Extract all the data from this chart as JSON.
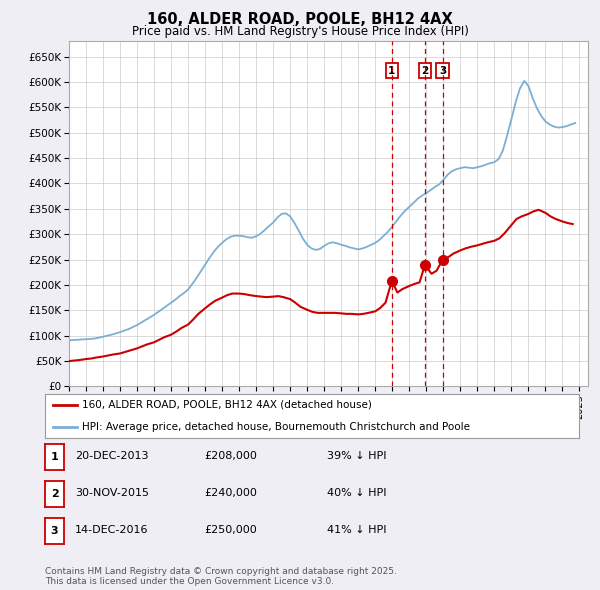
{
  "title": "160, ALDER ROAD, POOLE, BH12 4AX",
  "subtitle": "Price paid vs. HM Land Registry's House Price Index (HPI)",
  "xlim_start": 1995.0,
  "xlim_end": 2025.5,
  "ylim_min": 0,
  "ylim_max": 680000,
  "yticks": [
    0,
    50000,
    100000,
    150000,
    200000,
    250000,
    300000,
    350000,
    400000,
    450000,
    500000,
    550000,
    600000,
    650000
  ],
  "ytick_labels": [
    "£0",
    "£50K",
    "£100K",
    "£150K",
    "£200K",
    "£250K",
    "£300K",
    "£350K",
    "£400K",
    "£450K",
    "£500K",
    "£550K",
    "£600K",
    "£650K"
  ],
  "xticks": [
    1995,
    1996,
    1997,
    1998,
    1999,
    2000,
    2001,
    2002,
    2003,
    2004,
    2005,
    2006,
    2007,
    2008,
    2009,
    2010,
    2011,
    2012,
    2013,
    2014,
    2015,
    2016,
    2017,
    2018,
    2019,
    2020,
    2021,
    2022,
    2023,
    2024,
    2025
  ],
  "background_color": "#eeeef4",
  "plot_bg_color": "#ffffff",
  "grid_color": "#cccccc",
  "hpi_color": "#7bafd4",
  "price_color": "#cc0000",
  "vline_color": "#cc0000",
  "marker_color": "#cc0000",
  "sale_dates": [
    2013.97,
    2015.92,
    2016.96
  ],
  "sale_prices": [
    208000,
    240000,
    250000
  ],
  "sale_labels": [
    "1",
    "2",
    "3"
  ],
  "legend_price_label": "160, ALDER ROAD, POOLE, BH12 4AX (detached house)",
  "legend_hpi_label": "HPI: Average price, detached house, Bournemouth Christchurch and Poole",
  "table_rows": [
    {
      "num": "1",
      "date": "20-DEC-2013",
      "price": "£208,000",
      "pct": "39% ↓ HPI"
    },
    {
      "num": "2",
      "date": "30-NOV-2015",
      "price": "£240,000",
      "pct": "40% ↓ HPI"
    },
    {
      "num": "3",
      "date": "14-DEC-2016",
      "price": "£250,000",
      "pct": "41% ↓ HPI"
    }
  ],
  "footnote": "Contains HM Land Registry data © Crown copyright and database right 2025.\nThis data is licensed under the Open Government Licence v3.0.",
  "hpi_x": [
    1995.0,
    1995.25,
    1995.5,
    1995.75,
    1996.0,
    1996.25,
    1996.5,
    1996.75,
    1997.0,
    1997.25,
    1997.5,
    1997.75,
    1998.0,
    1998.25,
    1998.5,
    1998.75,
    1999.0,
    1999.25,
    1999.5,
    1999.75,
    2000.0,
    2000.25,
    2000.5,
    2000.75,
    2001.0,
    2001.25,
    2001.5,
    2001.75,
    2002.0,
    2002.25,
    2002.5,
    2002.75,
    2003.0,
    2003.25,
    2003.5,
    2003.75,
    2004.0,
    2004.25,
    2004.5,
    2004.75,
    2005.0,
    2005.25,
    2005.5,
    2005.75,
    2006.0,
    2006.25,
    2006.5,
    2006.75,
    2007.0,
    2007.25,
    2007.5,
    2007.75,
    2008.0,
    2008.25,
    2008.5,
    2008.75,
    2009.0,
    2009.25,
    2009.5,
    2009.75,
    2010.0,
    2010.25,
    2010.5,
    2010.75,
    2011.0,
    2011.25,
    2011.5,
    2011.75,
    2012.0,
    2012.25,
    2012.5,
    2012.75,
    2013.0,
    2013.25,
    2013.5,
    2013.75,
    2014.0,
    2014.25,
    2014.5,
    2014.75,
    2015.0,
    2015.25,
    2015.5,
    2015.75,
    2016.0,
    2016.25,
    2016.5,
    2016.75,
    2017.0,
    2017.25,
    2017.5,
    2017.75,
    2018.0,
    2018.25,
    2018.5,
    2018.75,
    2019.0,
    2019.25,
    2019.5,
    2019.75,
    2020.0,
    2020.25,
    2020.5,
    2020.75,
    2021.0,
    2021.25,
    2021.5,
    2021.75,
    2022.0,
    2022.25,
    2022.5,
    2022.75,
    2023.0,
    2023.25,
    2023.5,
    2023.75,
    2024.0,
    2024.25,
    2024.5,
    2024.75
  ],
  "hpi_y": [
    91000,
    91500,
    92000,
    92500,
    93000,
    93500,
    94500,
    96000,
    98000,
    100000,
    102000,
    104500,
    107000,
    110000,
    113000,
    117000,
    121000,
    126000,
    131000,
    136000,
    141000,
    147000,
    153000,
    159000,
    165000,
    171000,
    178000,
    184000,
    191000,
    202000,
    214000,
    227000,
    240000,
    253000,
    265000,
    275000,
    283000,
    290000,
    295000,
    297000,
    297000,
    296000,
    294000,
    293000,
    296000,
    301000,
    308000,
    316000,
    323000,
    333000,
    340000,
    341000,
    335000,
    322000,
    307000,
    291000,
    279000,
    272000,
    269000,
    271000,
    277000,
    282000,
    284000,
    282000,
    279000,
    277000,
    274000,
    272000,
    270000,
    272000,
    275000,
    279000,
    283000,
    289000,
    297000,
    305000,
    315000,
    326000,
    337000,
    346000,
    354000,
    362000,
    370000,
    376000,
    381000,
    387000,
    393000,
    398000,
    407000,
    417000,
    424000,
    428000,
    430000,
    432000,
    431000,
    430000,
    432000,
    434000,
    437000,
    440000,
    442000,
    448000,
    465000,
    495000,
    527000,
    560000,
    587000,
    602000,
    592000,
    568000,
    548000,
    533000,
    522000,
    516000,
    512000,
    510000,
    511000,
    513000,
    516000,
    519000
  ],
  "price_x": [
    1995.0,
    1995.3,
    1995.6,
    1996.0,
    1996.3,
    1996.6,
    1997.0,
    1997.3,
    1997.6,
    1998.0,
    1998.3,
    1998.6,
    1999.0,
    1999.3,
    1999.6,
    2000.0,
    2000.3,
    2000.6,
    2001.0,
    2001.3,
    2001.6,
    2002.0,
    2002.3,
    2002.6,
    2003.0,
    2003.3,
    2003.6,
    2004.0,
    2004.3,
    2004.6,
    2005.0,
    2005.3,
    2005.6,
    2006.0,
    2006.3,
    2006.6,
    2007.0,
    2007.3,
    2007.6,
    2008.0,
    2008.3,
    2008.6,
    2009.0,
    2009.3,
    2009.6,
    2010.0,
    2010.3,
    2010.6,
    2011.0,
    2011.3,
    2011.6,
    2012.0,
    2012.3,
    2012.6,
    2013.0,
    2013.3,
    2013.6,
    2013.97,
    2014.3,
    2014.6,
    2015.0,
    2015.3,
    2015.6,
    2015.92,
    2016.3,
    2016.6,
    2016.96,
    2017.3,
    2017.6,
    2018.0,
    2018.3,
    2018.6,
    2019.0,
    2019.3,
    2019.6,
    2020.0,
    2020.3,
    2020.6,
    2021.0,
    2021.3,
    2021.6,
    2022.0,
    2022.3,
    2022.6,
    2023.0,
    2023.3,
    2023.6,
    2024.0,
    2024.3,
    2024.6
  ],
  "price_y": [
    50000,
    51000,
    52000,
    54000,
    55000,
    57000,
    59000,
    61000,
    63000,
    65000,
    68000,
    71000,
    75000,
    79000,
    83000,
    87000,
    92000,
    97000,
    102000,
    108000,
    115000,
    122000,
    132000,
    143000,
    154000,
    162000,
    169000,
    175000,
    180000,
    183000,
    183000,
    182000,
    180000,
    178000,
    177000,
    176000,
    177000,
    178000,
    176000,
    172000,
    165000,
    157000,
    151000,
    147000,
    145000,
    145000,
    145000,
    145000,
    144000,
    143000,
    143000,
    142000,
    143000,
    145000,
    148000,
    155000,
    165000,
    208000,
    185000,
    192000,
    198000,
    202000,
    205000,
    240000,
    222000,
    228000,
    250000,
    255000,
    262000,
    268000,
    272000,
    275000,
    278000,
    281000,
    284000,
    287000,
    292000,
    302000,
    318000,
    330000,
    335000,
    340000,
    345000,
    348000,
    342000,
    335000,
    330000,
    325000,
    322000,
    320000
  ]
}
